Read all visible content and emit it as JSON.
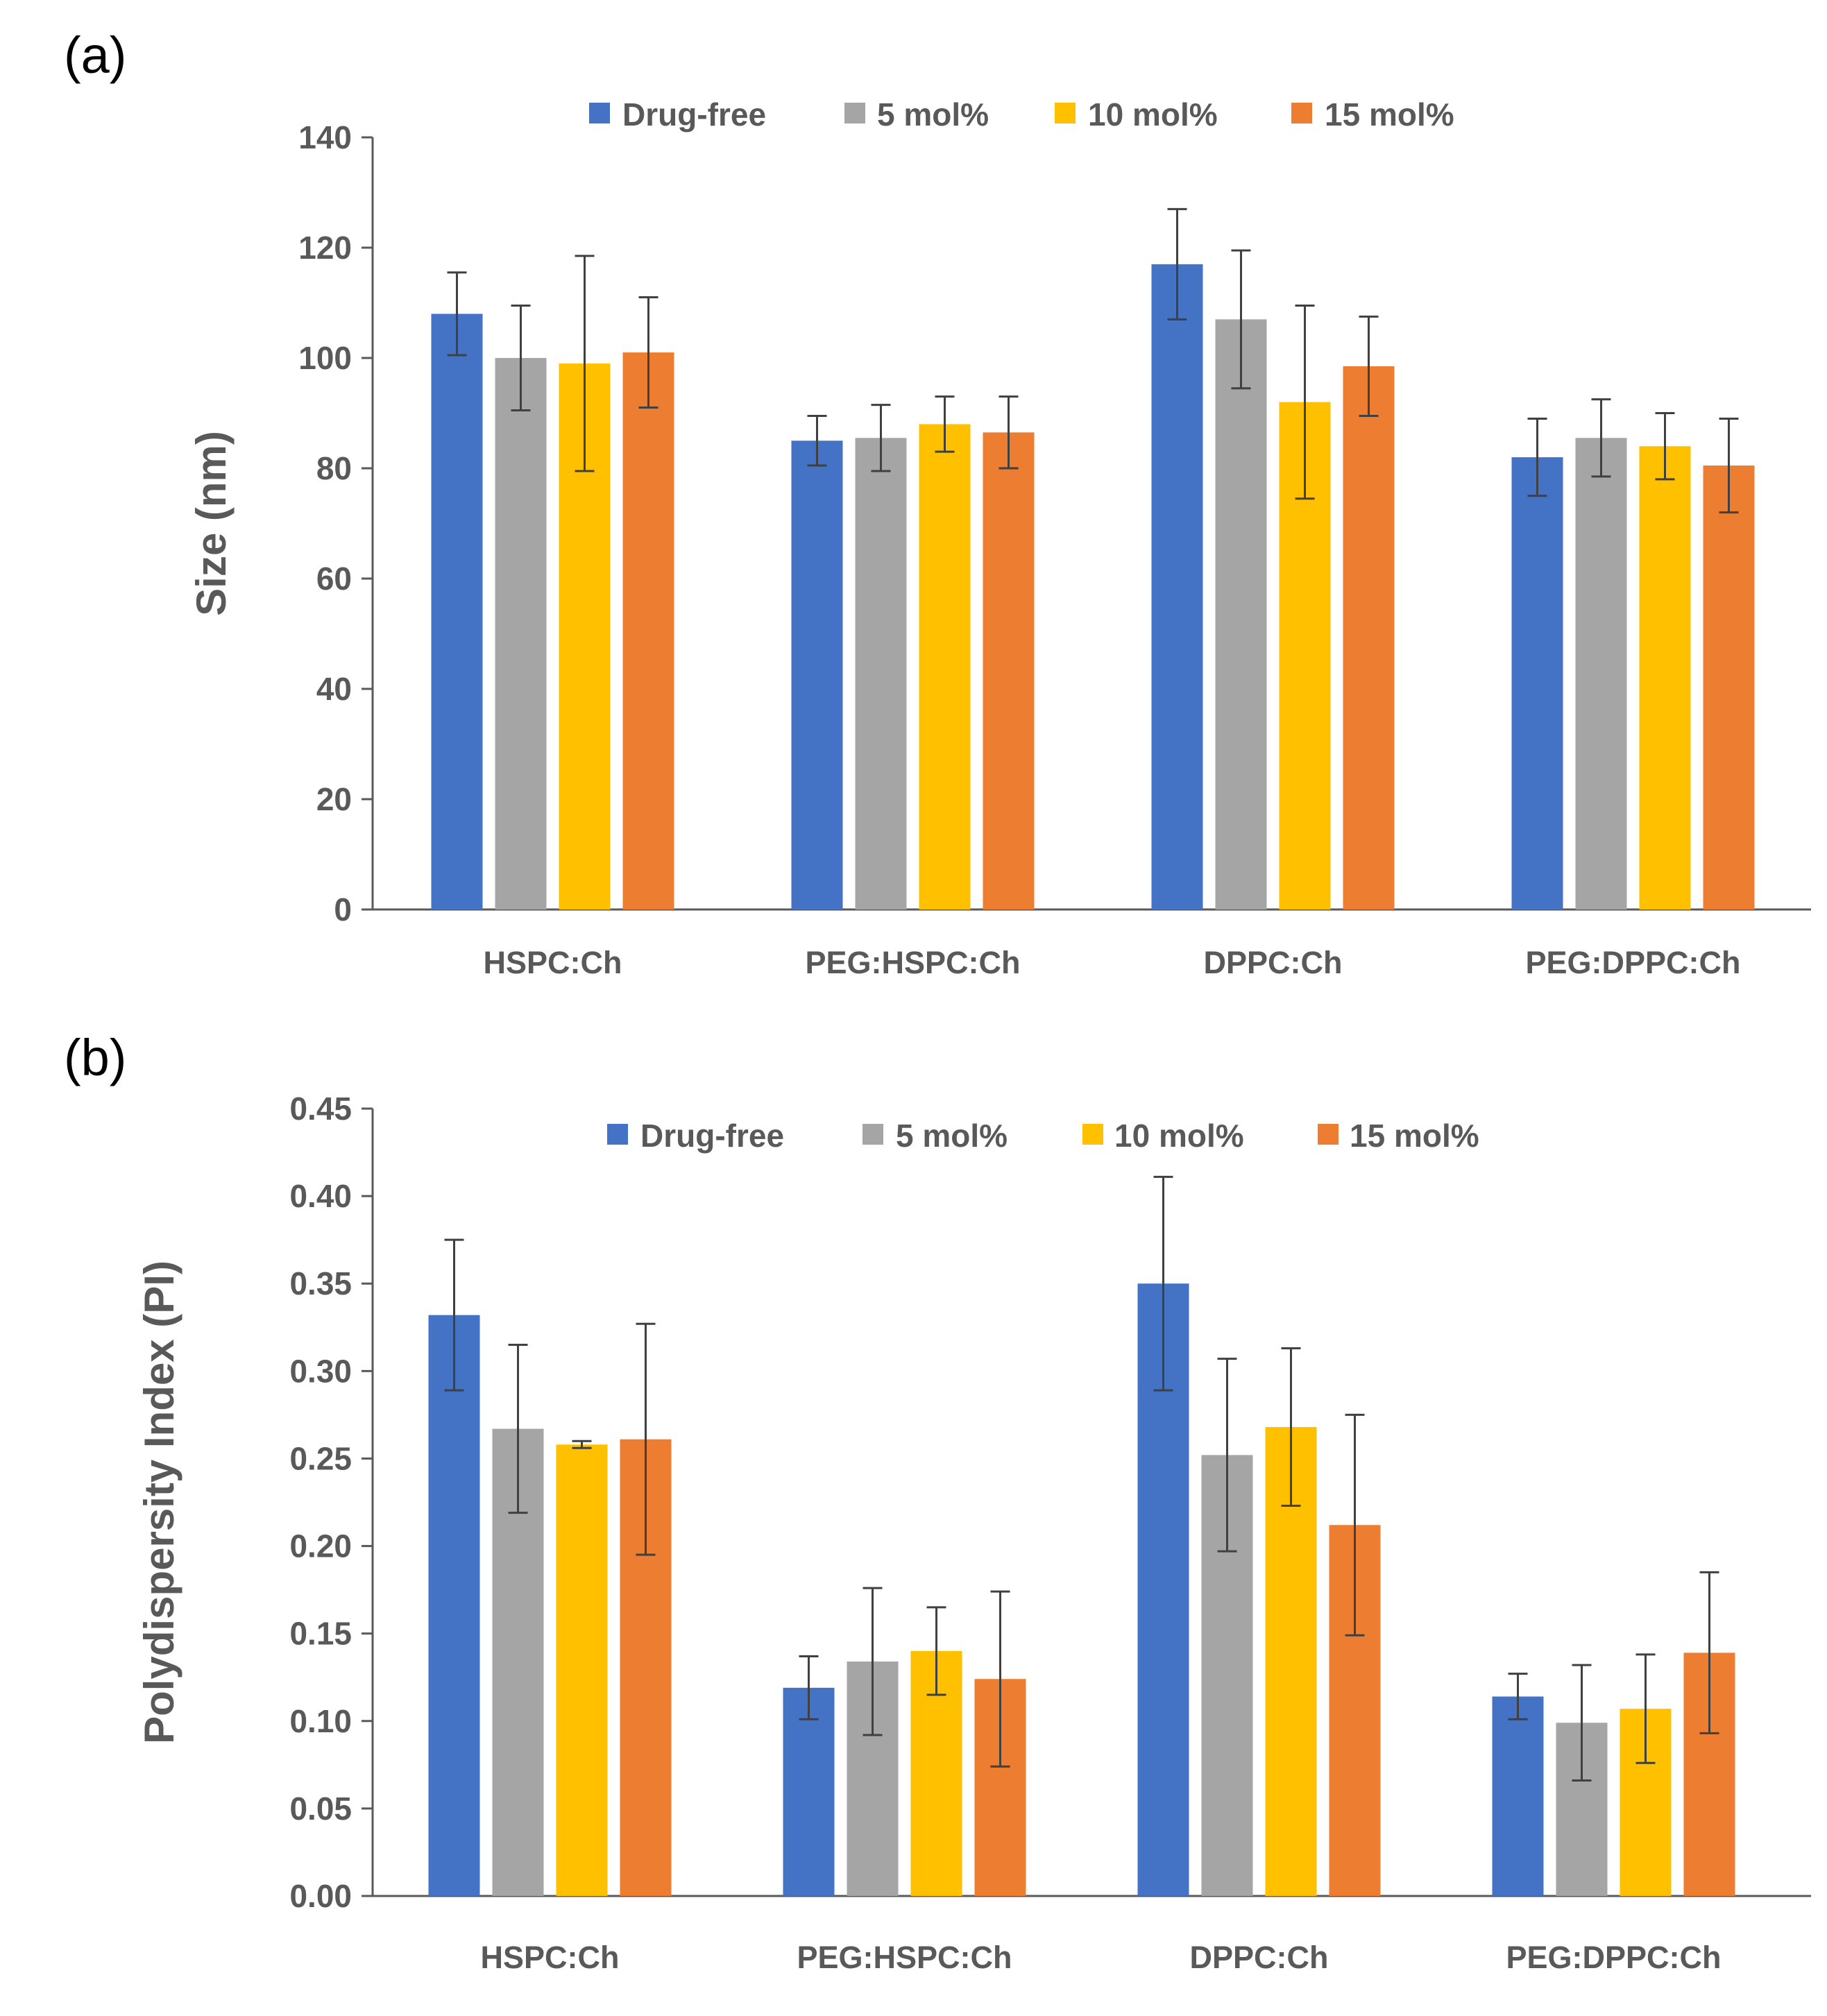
{
  "chart_data": [
    {
      "panel_label": "(a)",
      "type": "bar",
      "title": "",
      "xlabel": "",
      "ylabel": "Size (nm)",
      "ylim": [
        0,
        140
      ],
      "yticks": [
        0,
        20,
        40,
        60,
        80,
        100,
        120,
        140
      ],
      "ytick_labels": [
        "0",
        "20",
        "40",
        "60",
        "80",
        "100",
        "120",
        "140"
      ],
      "legend_position": "top-center",
      "grid": false,
      "categories": [
        "HSPC:Ch",
        "PEG:HSPC:Ch",
        "DPPC:Ch",
        "PEG:DPPC:Ch"
      ],
      "series": [
        {
          "name": "Drug-free",
          "color": "#4472C4",
          "values": [
            108,
            85,
            117,
            82
          ],
          "errors": [
            7.5,
            4.5,
            10,
            7
          ]
        },
        {
          "name": "5 mol%",
          "color": "#A5A5A5",
          "values": [
            100,
            85.5,
            107,
            85.5
          ],
          "errors": [
            9.5,
            6,
            12.5,
            7
          ]
        },
        {
          "name": "10 mol%",
          "color": "#FFC000",
          "values": [
            99,
            88,
            92,
            84
          ],
          "errors": [
            19.5,
            5,
            17.5,
            6
          ]
        },
        {
          "name": "15 mol%",
          "color": "#ED7D31",
          "values": [
            101,
            86.5,
            98.5,
            80.5
          ],
          "errors": [
            10,
            6.5,
            9,
            8.5
          ]
        }
      ]
    },
    {
      "panel_label": "(b)",
      "type": "bar",
      "title": "",
      "xlabel": "",
      "ylabel": "Polydispersity Index (PI)",
      "ylim": [
        0,
        0.45
      ],
      "yticks": [
        0,
        0.05,
        0.1,
        0.15,
        0.2,
        0.25,
        0.3,
        0.35,
        0.4,
        0.45
      ],
      "ytick_labels": [
        "0.00",
        "0.05",
        "0.10",
        "0.15",
        "0.20",
        "0.25",
        "0.30",
        "0.35",
        "0.40",
        "0.45"
      ],
      "legend_position": "top-center",
      "grid": false,
      "categories": [
        "HSPC:Ch",
        "PEG:HSPC:Ch",
        "DPPC:Ch",
        "PEG:DPPC:Ch"
      ],
      "series": [
        {
          "name": "Drug-free",
          "color": "#4472C4",
          "values": [
            0.332,
            0.119,
            0.35,
            0.114
          ],
          "errors": [
            0.043,
            0.018,
            0.061,
            0.013
          ]
        },
        {
          "name": "5 mol%",
          "color": "#A5A5A5",
          "values": [
            0.267,
            0.134,
            0.252,
            0.099
          ],
          "errors": [
            0.048,
            0.042,
            0.055,
            0.033
          ]
        },
        {
          "name": "10 mol%",
          "color": "#FFC000",
          "values": [
            0.258,
            0.14,
            0.268,
            0.107
          ],
          "errors": [
            0.002,
            0.025,
            0.045,
            0.031
          ]
        },
        {
          "name": "15 mol%",
          "color": "#ED7D31",
          "values": [
            0.261,
            0.124,
            0.212,
            0.139
          ],
          "errors": [
            0.066,
            0.05,
            0.063,
            0.046
          ]
        }
      ]
    }
  ]
}
